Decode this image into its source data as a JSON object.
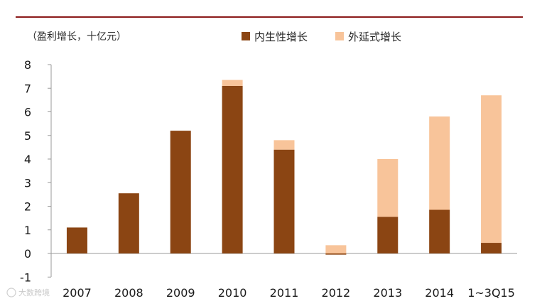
{
  "chart_data": {
    "type": "bar",
    "stacked": true,
    "ylabel": "（盈利增长，十亿元）",
    "ylim": [
      -1,
      8
    ],
    "yticks": [
      -1,
      0,
      1,
      2,
      3,
      4,
      5,
      6,
      7,
      8
    ],
    "categories": [
      "2007",
      "2008",
      "2009",
      "2010",
      "2011",
      "2012",
      "2013",
      "2014",
      "1~3Q15"
    ],
    "series": [
      {
        "name": "内生性增长",
        "color": "#8b4513",
        "values": [
          1.1,
          2.55,
          5.2,
          7.1,
          4.4,
          -0.05,
          1.55,
          1.85,
          0.45
        ]
      },
      {
        "name": "外延式增长",
        "color": "#f8c49a",
        "values": [
          0,
          0,
          0,
          0.25,
          0.4,
          0.35,
          2.45,
          3.95,
          6.25
        ]
      }
    ],
    "legend_position": "top-right",
    "grid": false
  },
  "watermark": "大数跨境",
  "top_rule_color": "#8b1a1a"
}
